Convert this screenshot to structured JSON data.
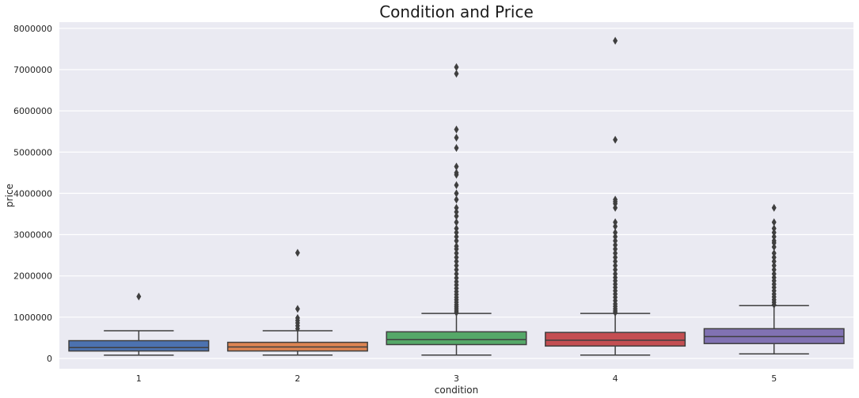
{
  "chart_data": {
    "type": "box",
    "title": "Condition and Price",
    "xlabel": "condition",
    "ylabel": "price",
    "ylim": [
      -250000,
      8150000
    ],
    "yticks": [
      0,
      1000000,
      2000000,
      3000000,
      4000000,
      5000000,
      6000000,
      7000000,
      8000000
    ],
    "ytick_labels": [
      "0",
      "1000000",
      "2000000",
      "3000000",
      "4000000",
      "5000000",
      "6000000",
      "7000000",
      "8000000"
    ],
    "grid": true,
    "categories": [
      "1",
      "2",
      "3",
      "4",
      "5"
    ],
    "boxes": [
      {
        "category": "1",
        "color": "#4c72b0",
        "min": 78000,
        "q1": 180000,
        "median": 263000,
        "q3": 430000,
        "max": 670000,
        "outliers": [
          1500000
        ]
      },
      {
        "category": "2",
        "color": "#dd8452",
        "min": 80000,
        "q1": 180000,
        "median": 278000,
        "q3": 390000,
        "max": 670000,
        "outliers": [
          720000,
          790000,
          860000,
          920000,
          980000,
          1200000,
          2560000
        ]
      },
      {
        "category": "3",
        "color": "#55a868",
        "min": 81000,
        "q1": 335000,
        "median": 455000,
        "q3": 645000,
        "max": 1090000,
        "outliers": [
          1110000,
          1150000,
          1200000,
          1250000,
          1300000,
          1360000,
          1420000,
          1480000,
          1550000,
          1620000,
          1700000,
          1780000,
          1860000,
          1950000,
          2050000,
          2150000,
          2250000,
          2350000,
          2450000,
          2550000,
          2650000,
          2720000,
          2850000,
          2950000,
          3050000,
          3150000,
          3300000,
          3450000,
          3550000,
          3650000,
          3850000,
          4000000,
          4200000,
          4450000,
          4500000,
          4650000,
          5100000,
          5350000,
          5550000,
          6900000,
          7060000
        ]
      },
      {
        "category": "4",
        "color": "#c44e52",
        "min": 80000,
        "q1": 300000,
        "median": 440000,
        "q3": 630000,
        "max": 1090000,
        "outliers": [
          1110000,
          1150000,
          1200000,
          1260000,
          1320000,
          1400000,
          1480000,
          1560000,
          1640000,
          1720000,
          1800000,
          1880000,
          1960000,
          2050000,
          2150000,
          2250000,
          2350000,
          2450000,
          2550000,
          2650000,
          2750000,
          2850000,
          2950000,
          3050000,
          3200000,
          3300000,
          3650000,
          3750000,
          3800000,
          3850000,
          5300000,
          7700000
        ]
      },
      {
        "category": "5",
        "color": "#8172b3",
        "min": 110000,
        "q1": 360000,
        "median": 530000,
        "q3": 720000,
        "max": 1280000,
        "outliers": [
          1300000,
          1360000,
          1420000,
          1490000,
          1560000,
          1640000,
          1720000,
          1800000,
          1880000,
          1960000,
          2050000,
          2150000,
          2250000,
          2350000,
          2450000,
          2550000,
          2700000,
          2800000,
          2850000,
          2950000,
          3050000,
          3150000,
          3300000,
          3650000
        ]
      }
    ]
  }
}
